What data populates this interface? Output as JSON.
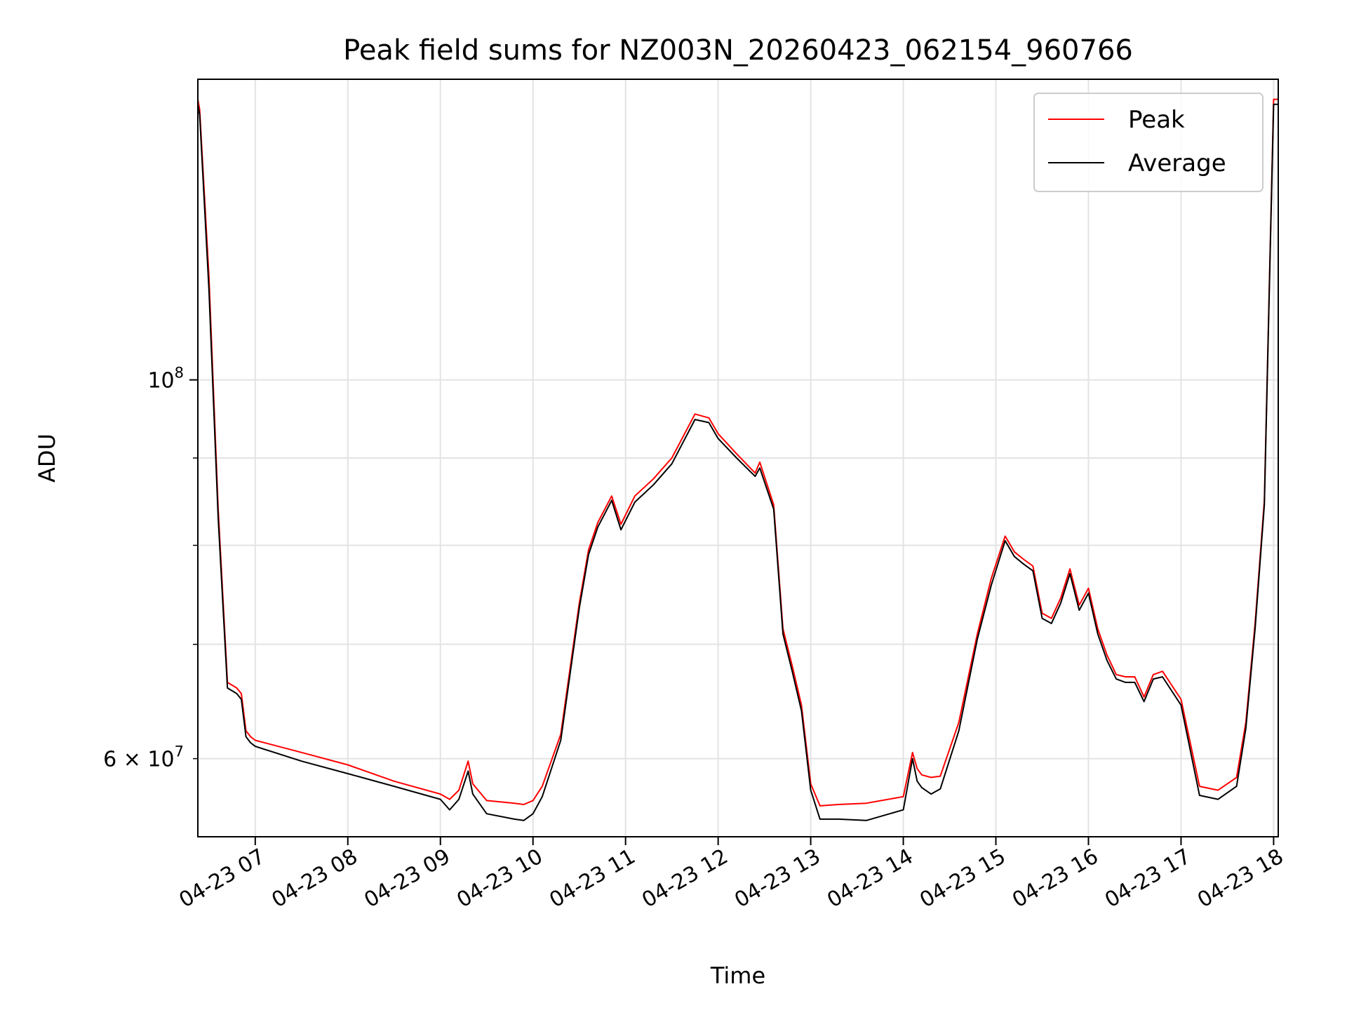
{
  "chart_data": {
    "type": "line",
    "title": "Peak field sums for NZ003N_20260423_062154_960766",
    "xlabel": "Time",
    "ylabel": "ADU",
    "yscale": "log",
    "grid": true,
    "legend_position": "top-right",
    "xlim": [
      6.38,
      18.05
    ],
    "ylim": [
      54000000,
      150000000
    ],
    "x_ticks": [
      7,
      8,
      9,
      10,
      11,
      12,
      13,
      14,
      15,
      16,
      17,
      18
    ],
    "x_tick_labels": [
      "04-23 07",
      "04-23 08",
      "04-23 09",
      "04-23 10",
      "04-23 11",
      "04-23 12",
      "04-23 13",
      "04-23 14",
      "04-23 15",
      "04-23 16",
      "04-23 17",
      "04-23 18"
    ],
    "y_major_ticks": [
      100000000
    ],
    "y_major_tick_label": "10",
    "y_major_tick_exp": "8",
    "y_minor_ticks": [
      60000000,
      70000000,
      80000000,
      90000000
    ],
    "y_minor_label_text": "6 × 10",
    "y_minor_label_exp": "7",
    "x": [
      6.38,
      6.4,
      6.5,
      6.6,
      6.7,
      6.8,
      6.85,
      6.9,
      6.95,
      7.0,
      7.5,
      8.0,
      8.5,
      9.0,
      9.1,
      9.2,
      9.3,
      9.35,
      9.5,
      9.8,
      9.9,
      10.0,
      10.1,
      10.3,
      10.5,
      10.6,
      10.7,
      10.85,
      10.95,
      11.1,
      11.3,
      11.5,
      11.75,
      11.9,
      12.0,
      12.2,
      12.4,
      12.45,
      12.6,
      12.7,
      12.8,
      12.9,
      13.0,
      13.1,
      13.3,
      13.6,
      14.0,
      14.1,
      14.15,
      14.2,
      14.3,
      14.4,
      14.6,
      14.8,
      14.95,
      15.1,
      15.2,
      15.3,
      15.4,
      15.5,
      15.6,
      15.7,
      15.8,
      15.9,
      16.0,
      16.1,
      16.2,
      16.3,
      16.4,
      16.5,
      16.6,
      16.7,
      16.8,
      17.0,
      17.2,
      17.4,
      17.6,
      17.7,
      17.8,
      17.9,
      18.0,
      18.05
    ],
    "series": [
      {
        "name": "Peak",
        "color": "#ff0000",
        "values": [
          146000000,
          144000000,
          115000000,
          84000000,
          66500000,
          66000000,
          65500000,
          62300000,
          61800000,
          61500000,
          60500000,
          59500000,
          58200000,
          57200000,
          56800000,
          57500000,
          59800000,
          58000000,
          56700000,
          56500000,
          56400000,
          56700000,
          57800000,
          62000000,
          74000000,
          79500000,
          82500000,
          85500000,
          82300000,
          85500000,
          87500000,
          90000000,
          95500000,
          95000000,
          93000000,
          90500000,
          88200000,
          89500000,
          84500000,
          71500000,
          68000000,
          64500000,
          58000000,
          56300000,
          56400000,
          56500000,
          57000000,
          60500000,
          59200000,
          58700000,
          58500000,
          58600000,
          63000000,
          71000000,
          76500000,
          81000000,
          79300000,
          78500000,
          77800000,
          73000000,
          72500000,
          74500000,
          77500000,
          73800000,
          75500000,
          71500000,
          69000000,
          67200000,
          67000000,
          67000000,
          65200000,
          67200000,
          67500000,
          65000000,
          57800000,
          57500000,
          58500000,
          63000000,
          72000000,
          85000000,
          146000000,
          146000000
        ]
      },
      {
        "name": "Average",
        "color": "#000000",
        "values": [
          145000000,
          143000000,
          113000000,
          83000000,
          66000000,
          65500000,
          65000000,
          61800000,
          61300000,
          61000000,
          59800000,
          58800000,
          57800000,
          56800000,
          56000000,
          56800000,
          59000000,
          57200000,
          55700000,
          55300000,
          55200000,
          55700000,
          57000000,
          61500000,
          73500000,
          79000000,
          82000000,
          85000000,
          81700000,
          84800000,
          86800000,
          89300000,
          94800000,
          94400000,
          92400000,
          90000000,
          87800000,
          88800000,
          84000000,
          71000000,
          67500000,
          64000000,
          57500000,
          55300000,
          55300000,
          55200000,
          56000000,
          60000000,
          58200000,
          57700000,
          57200000,
          57600000,
          62300000,
          70500000,
          75800000,
          80500000,
          78800000,
          78000000,
          77300000,
          72500000,
          72000000,
          74000000,
          77000000,
          73300000,
          75000000,
          71000000,
          68500000,
          66800000,
          66500000,
          66500000,
          64800000,
          66800000,
          67000000,
          64500000,
          57100000,
          56800000,
          57800000,
          62500000,
          71500000,
          84500000,
          145000000,
          145000000
        ]
      }
    ]
  }
}
